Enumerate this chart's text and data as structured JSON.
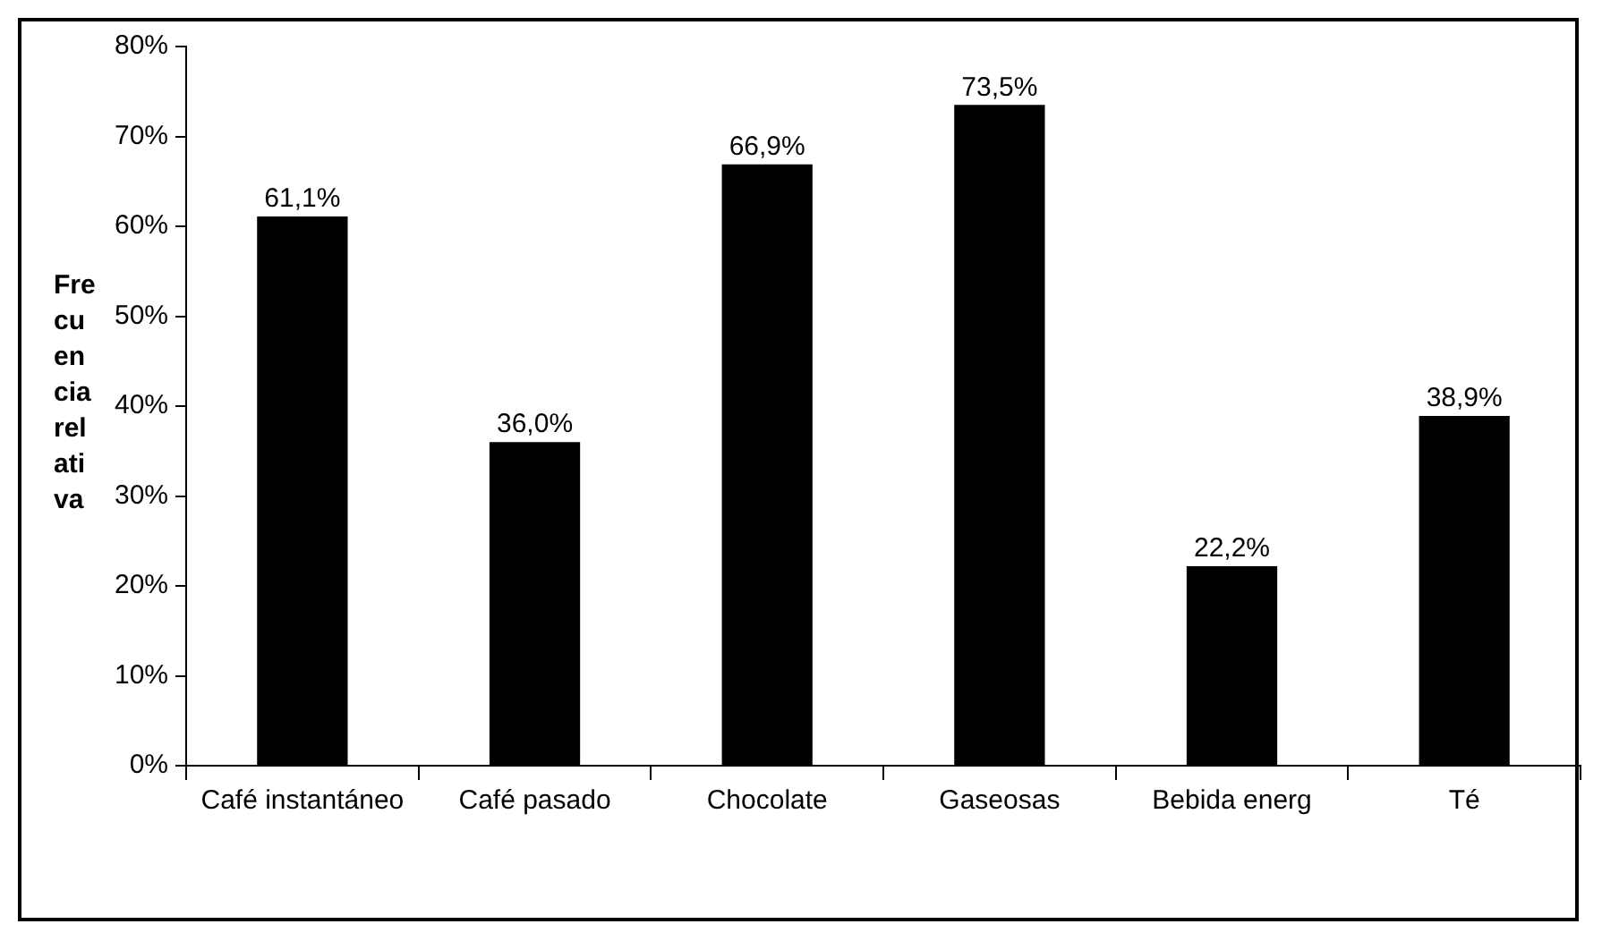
{
  "chart_data": {
    "type": "bar",
    "ylabel": "Frecuencia relativa",
    "categories": [
      "Café instantáneo",
      "Café pasado",
      "Chocolate",
      "Gaseosas",
      "Bebida energ",
      "Té"
    ],
    "values": [
      61.1,
      36.0,
      66.9,
      73.5,
      22.2,
      38.9
    ],
    "value_labels": [
      "61,1%",
      "36,0%",
      "66,9%",
      "73,5%",
      "22,2%",
      "38,9%"
    ],
    "color": "#000000",
    "ylim": [
      0,
      80
    ],
    "yticks": [
      {
        "value": 0,
        "label": "0%"
      },
      {
        "value": 10,
        "label": "10%"
      },
      {
        "value": 20,
        "label": "20%"
      },
      {
        "value": 30,
        "label": "30%"
      },
      {
        "value": 40,
        "label": "40%"
      },
      {
        "value": 50,
        "label": "50%"
      },
      {
        "value": 60,
        "label": "60%"
      },
      {
        "value": 70,
        "label": "70%"
      },
      {
        "value": 80,
        "label": "80%"
      }
    ],
    "grid": false,
    "legend": false
  }
}
